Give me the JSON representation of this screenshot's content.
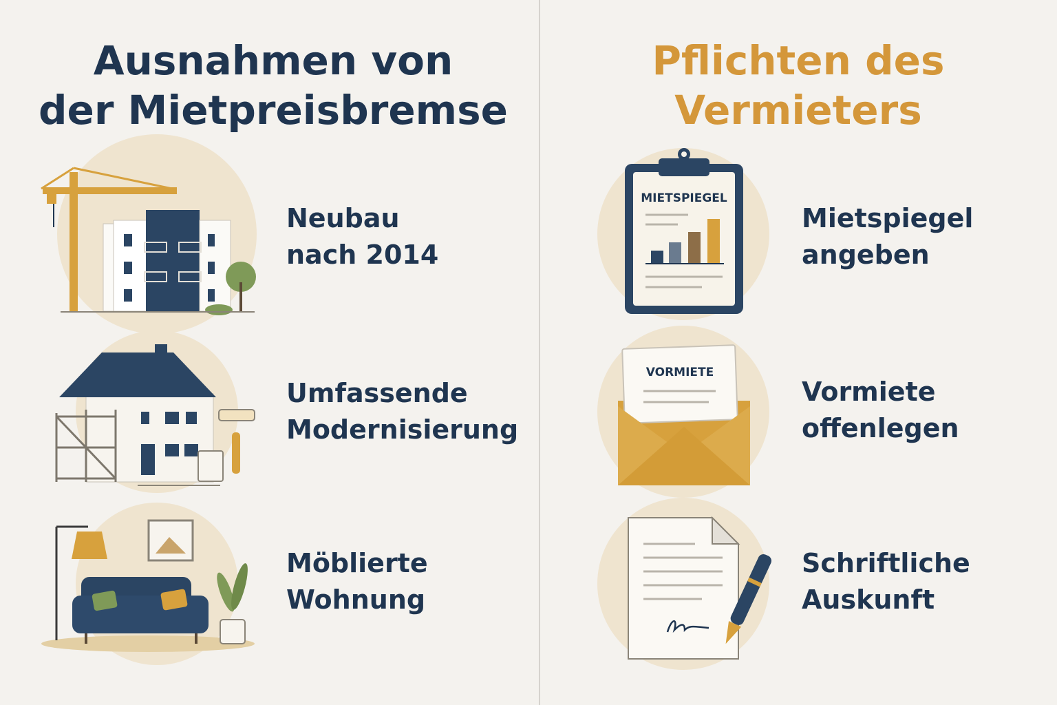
{
  "left": {
    "title": [
      "Ausnahmen von",
      "der Mietpreisbremse"
    ],
    "items": [
      {
        "label": [
          "Neubau",
          "nach 2014"
        ]
      },
      {
        "label": [
          "Umfassende",
          "Modernisierung"
        ]
      },
      {
        "label": [
          "Möblierte",
          "Wohnung"
        ]
      }
    ]
  },
  "right": {
    "title": [
      "Pflichten des",
      "Vermieters"
    ],
    "items": [
      {
        "label": [
          "Mietspiegel",
          "angeben"
        ],
        "icon_text": "MIETSPIEGEL"
      },
      {
        "label": [
          "Vormiete",
          "offenlegen"
        ],
        "icon_text": "VORMIETE"
      },
      {
        "label": [
          "Schriftliche",
          "Auskunft"
        ]
      }
    ]
  }
}
